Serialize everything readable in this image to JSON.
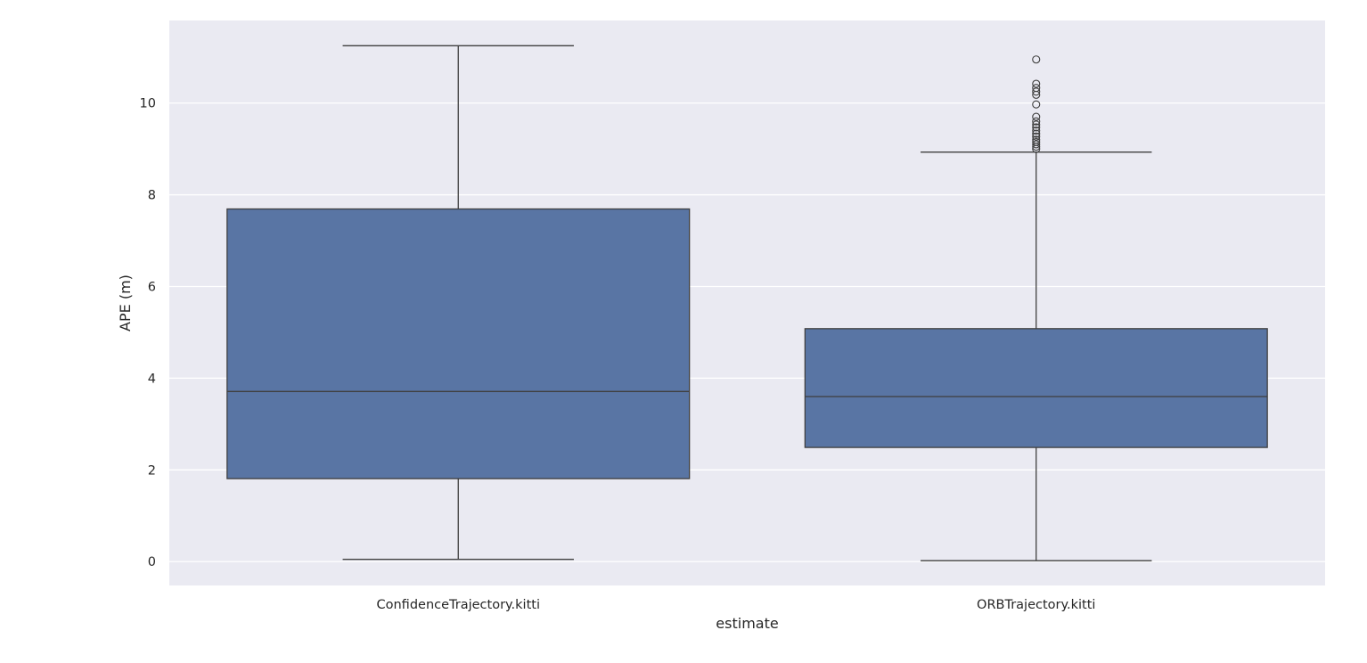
{
  "chart_data": {
    "type": "box",
    "xlabel": "estimate",
    "ylabel": "APE (m)",
    "ylim": [
      -0.52,
      11.8
    ],
    "yticks": [
      0,
      2,
      4,
      6,
      8,
      10
    ],
    "grid": true,
    "categories": [
      "ConfidenceTrajectory.kitti",
      "ORBTrajectory.kitti"
    ],
    "boxes": [
      {
        "category": "ConfidenceTrajectory.kitti",
        "whisker_low": 0.05,
        "q1": 1.81,
        "median": 3.71,
        "q3": 7.69,
        "whisker_high": 11.25,
        "outliers": []
      },
      {
        "category": "ORBTrajectory.kitti",
        "whisker_low": 0.02,
        "q1": 2.49,
        "median": 3.6,
        "q3": 5.08,
        "whisker_high": 8.93,
        "outliers": [
          9.0,
          9.05,
          9.1,
          9.15,
          9.2,
          9.27,
          9.33,
          9.4,
          9.47,
          9.53,
          9.6,
          9.7,
          9.97,
          10.18,
          10.25,
          10.33,
          10.42,
          10.95
        ]
      }
    ],
    "colors": {
      "box_fill": "#5975a4",
      "line": "#3f3f3f",
      "plot_bg": "#eaeaf2",
      "grid": "#ffffff"
    }
  }
}
